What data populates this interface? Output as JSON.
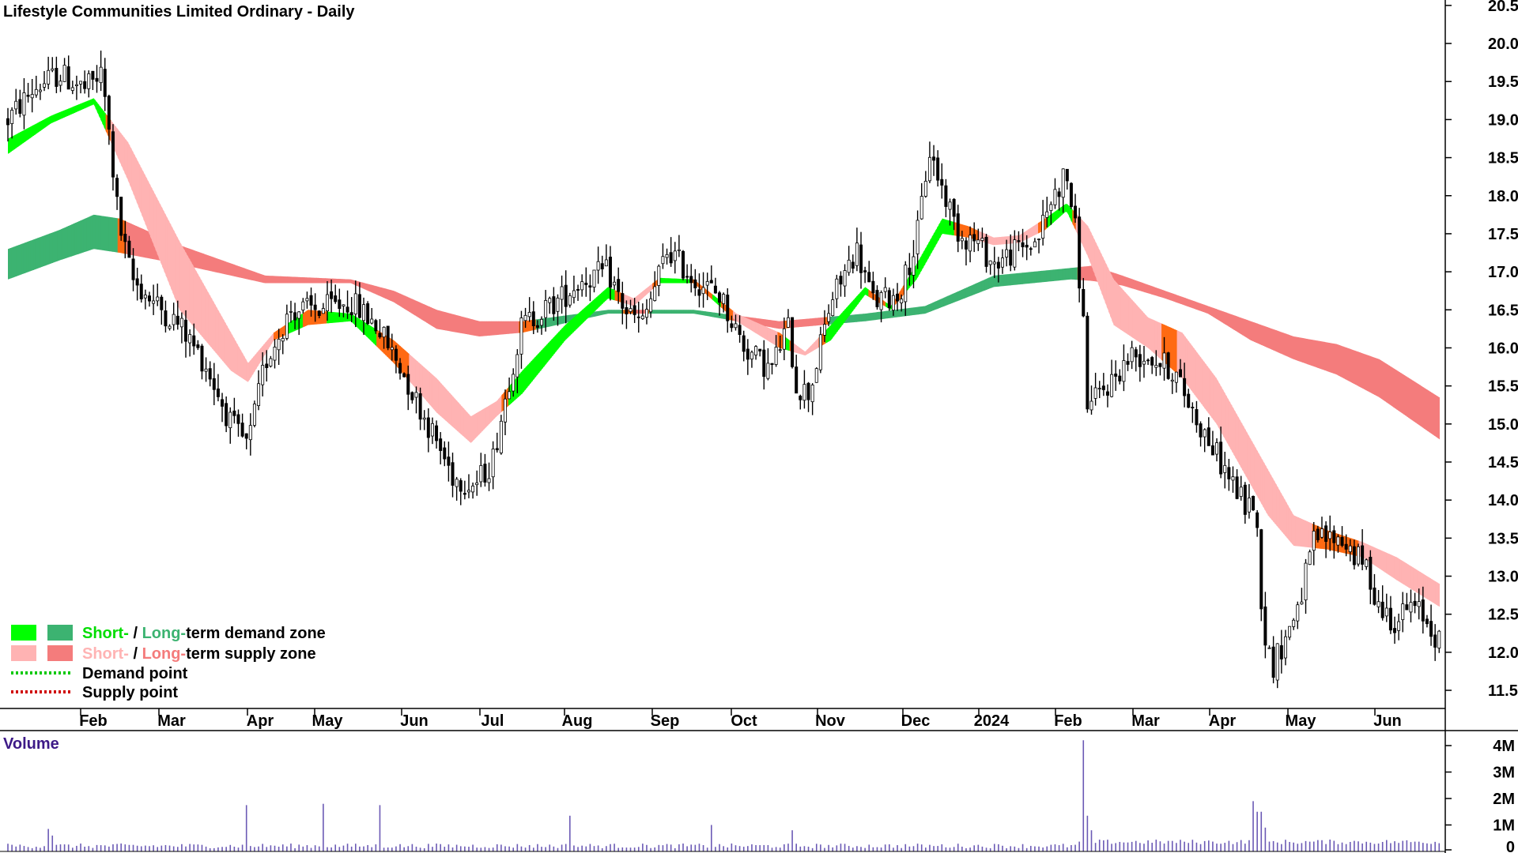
{
  "colors": {
    "short_demand": "#00ff00",
    "long_demand": "#3cb371",
    "short_supply": "#ffb3b3",
    "long_supply": "#f47c7c",
    "transition": "#ff6a13",
    "candle": "#000000",
    "volume_bar": "#6b5ab5",
    "volume_label": "#3d1a87",
    "demand_point": "#00c800",
    "supply_point": "#d00000"
  },
  "legend": {
    "demand_short": "Short-",
    "demand_sep": " / ",
    "demand_long": "Long-",
    "demand_rest": "term demand zone",
    "supply_short": "Short-",
    "supply_sep": " / ",
    "supply_long": "Long-",
    "supply_rest": "term supply zone",
    "demand_point": "Demand point",
    "supply_point": "Supply point"
  },
  "chart_data": {
    "type": "candlestick",
    "title": "Lifestyle Communities Limited Ordinary - Daily",
    "x_tick_labels": [
      "Feb",
      "Mar",
      "Apr",
      "May",
      "Jun",
      "Jul",
      "Aug",
      "Sep",
      "Oct",
      "Nov",
      "Dec",
      "2024",
      "Feb",
      "Mar",
      "Apr",
      "May",
      "Jun"
    ],
    "y_tick_labels": [
      "11.5",
      "12.0",
      "12.5",
      "13.0",
      "13.5",
      "14.0",
      "14.5",
      "15.0",
      "15.5",
      "16.0",
      "16.5",
      "17.0",
      "17.5",
      "18.0",
      "18.5",
      "19.0",
      "19.5",
      "20.0",
      "20.5"
    ],
    "ylim": [
      11.2,
      20.6
    ],
    "grid": false,
    "legend_position": "bottom-left",
    "price_path": [
      {
        "m": 0.0,
        "p": 19.0
      },
      {
        "m": 0.3,
        "p": 19.4
      },
      {
        "m": 0.6,
        "p": 19.6
      },
      {
        "m": 0.9,
        "p": 19.4
      },
      {
        "m": 1.1,
        "p": 19.6
      },
      {
        "m": 1.2,
        "p": 18.6
      },
      {
        "m": 1.3,
        "p": 17.6
      },
      {
        "m": 1.45,
        "p": 16.9
      },
      {
        "m": 1.7,
        "p": 16.6
      },
      {
        "m": 2.0,
        "p": 16.3
      },
      {
        "m": 2.3,
        "p": 15.8
      },
      {
        "m": 2.6,
        "p": 15.0
      },
      {
        "m": 2.8,
        "p": 14.7
      },
      {
        "m": 3.0,
        "p": 15.8
      },
      {
        "m": 3.3,
        "p": 16.5
      },
      {
        "m": 3.6,
        "p": 16.5
      },
      {
        "m": 4.0,
        "p": 16.6
      },
      {
        "m": 4.3,
        "p": 16.3
      },
      {
        "m": 4.6,
        "p": 15.7
      },
      {
        "m": 4.9,
        "p": 15.0
      },
      {
        "m": 5.2,
        "p": 14.3
      },
      {
        "m": 5.45,
        "p": 14.2
      },
      {
        "m": 5.65,
        "p": 14.5
      },
      {
        "m": 5.85,
        "p": 15.6
      },
      {
        "m": 6.0,
        "p": 16.3
      },
      {
        "m": 6.4,
        "p": 16.6
      },
      {
        "m": 6.7,
        "p": 16.9
      },
      {
        "m": 7.0,
        "p": 17.0
      },
      {
        "m": 7.2,
        "p": 16.5
      },
      {
        "m": 7.4,
        "p": 16.3
      },
      {
        "m": 7.7,
        "p": 17.3
      },
      {
        "m": 8.0,
        "p": 16.9
      },
      {
        "m": 8.3,
        "p": 16.7
      },
      {
        "m": 8.6,
        "p": 16.0
      },
      {
        "m": 8.9,
        "p": 15.7
      },
      {
        "m": 9.1,
        "p": 16.3
      },
      {
        "m": 9.2,
        "p": 15.5
      },
      {
        "m": 9.35,
        "p": 15.4
      },
      {
        "m": 9.6,
        "p": 16.6
      },
      {
        "m": 9.9,
        "p": 17.3
      },
      {
        "m": 10.1,
        "p": 16.6
      },
      {
        "m": 10.4,
        "p": 16.7
      },
      {
        "m": 10.6,
        "p": 17.4
      },
      {
        "m": 10.75,
        "p": 18.6
      },
      {
        "m": 10.9,
        "p": 18.1
      },
      {
        "m": 11.1,
        "p": 17.5
      },
      {
        "m": 11.3,
        "p": 17.4
      },
      {
        "m": 11.5,
        "p": 17.1
      },
      {
        "m": 11.8,
        "p": 17.3
      },
      {
        "m": 12.0,
        "p": 17.4
      },
      {
        "m": 12.2,
        "p": 18.0
      },
      {
        "m": 12.35,
        "p": 18.3
      },
      {
        "m": 12.45,
        "p": 17.6
      },
      {
        "m": 12.55,
        "p": 16.3
      },
      {
        "m": 12.6,
        "p": 15.2
      },
      {
        "m": 12.9,
        "p": 15.6
      },
      {
        "m": 13.1,
        "p": 15.9
      },
      {
        "m": 13.3,
        "p": 15.9
      },
      {
        "m": 13.6,
        "p": 15.7
      },
      {
        "m": 13.9,
        "p": 15.0
      },
      {
        "m": 14.2,
        "p": 14.4
      },
      {
        "m": 14.45,
        "p": 13.9
      },
      {
        "m": 14.55,
        "p": 14.0
      },
      {
        "m": 14.65,
        "p": 12.3
      },
      {
        "m": 14.75,
        "p": 11.8
      },
      {
        "m": 14.95,
        "p": 12.3
      },
      {
        "m": 15.1,
        "p": 12.8
      },
      {
        "m": 15.25,
        "p": 13.5
      },
      {
        "m": 15.55,
        "p": 13.5
      },
      {
        "m": 15.85,
        "p": 13.1
      },
      {
        "m": 16.0,
        "p": 12.6
      },
      {
        "m": 16.2,
        "p": 12.4
      },
      {
        "m": 16.35,
        "p": 12.6
      },
      {
        "m": 16.5,
        "p": 12.5
      },
      {
        "m": 16.7,
        "p": 12.15
      }
    ],
    "short_term_zone": [
      {
        "m": 0.0,
        "t": 18.55,
        "b": 18.75
      },
      {
        "m": 0.5,
        "t": 18.95,
        "b": 19.05
      },
      {
        "m": 1.0,
        "t": 19.2,
        "b": 19.28
      },
      {
        "m": 1.4,
        "t": 18.2,
        "b": 18.7
      },
      {
        "m": 2.0,
        "t": 16.5,
        "b": 17.4
      },
      {
        "m": 2.6,
        "t": 15.7,
        "b": 16.2
      },
      {
        "m": 2.8,
        "t": 15.55,
        "b": 15.8
      },
      {
        "m": 3.1,
        "t": 16.1,
        "b": 16.2
      },
      {
        "m": 3.5,
        "t": 16.3,
        "b": 16.5
      },
      {
        "m": 4.0,
        "t": 16.35,
        "b": 16.45
      },
      {
        "m": 4.5,
        "t": 15.8,
        "b": 16.1
      },
      {
        "m": 5.0,
        "t": 15.15,
        "b": 15.6
      },
      {
        "m": 5.4,
        "t": 14.75,
        "b": 15.1
      },
      {
        "m": 5.7,
        "t": 15.1,
        "b": 15.3
      },
      {
        "m": 6.0,
        "t": 15.4,
        "b": 15.7
      },
      {
        "m": 6.5,
        "t": 16.1,
        "b": 16.3
      },
      {
        "m": 7.0,
        "t": 16.65,
        "b": 16.8
      },
      {
        "m": 7.3,
        "t": 16.55,
        "b": 16.65
      },
      {
        "m": 7.6,
        "t": 16.85,
        "b": 16.92
      },
      {
        "m": 8.0,
        "t": 16.85,
        "b": 16.9
      },
      {
        "m": 8.5,
        "t": 16.35,
        "b": 16.45
      },
      {
        "m": 9.0,
        "t": 16.0,
        "b": 16.2
      },
      {
        "m": 9.3,
        "t": 15.9,
        "b": 15.95
      },
      {
        "m": 9.6,
        "t": 16.1,
        "b": 16.3
      },
      {
        "m": 10.0,
        "t": 16.7,
        "b": 16.8
      },
      {
        "m": 10.3,
        "t": 16.5,
        "b": 16.55
      },
      {
        "m": 10.6,
        "t": 16.9,
        "b": 17.1
      },
      {
        "m": 10.9,
        "t": 17.5,
        "b": 17.7
      },
      {
        "m": 11.2,
        "t": 17.45,
        "b": 17.6
      },
      {
        "m": 11.5,
        "t": 17.35,
        "b": 17.45
      },
      {
        "m": 11.8,
        "t": 17.38,
        "b": 17.48
      },
      {
        "m": 12.1,
        "t": 17.55,
        "b": 17.7
      },
      {
        "m": 12.35,
        "t": 17.8,
        "b": 17.9
      },
      {
        "m": 12.6,
        "t": 17.2,
        "b": 17.6
      },
      {
        "m": 12.9,
        "t": 16.3,
        "b": 16.9
      },
      {
        "m": 13.3,
        "t": 16.0,
        "b": 16.4
      },
      {
        "m": 13.7,
        "t": 15.6,
        "b": 16.2
      },
      {
        "m": 14.1,
        "t": 15.0,
        "b": 15.6
      },
      {
        "m": 14.4,
        "t": 14.4,
        "b": 15.0
      },
      {
        "m": 14.7,
        "t": 13.8,
        "b": 14.4
      },
      {
        "m": 15.0,
        "t": 13.4,
        "b": 13.8
      },
      {
        "m": 15.4,
        "t": 13.35,
        "b": 13.6
      },
      {
        "m": 15.8,
        "t": 13.25,
        "b": 13.45
      },
      {
        "m": 16.2,
        "t": 12.95,
        "b": 13.25
      },
      {
        "m": 16.7,
        "t": 12.6,
        "b": 12.9
      }
    ],
    "long_term_zone": [
      {
        "m": 0.0,
        "t": 16.9,
        "b": 17.3
      },
      {
        "m": 0.6,
        "t": 17.15,
        "b": 17.55
      },
      {
        "m": 1.0,
        "t": 17.3,
        "b": 17.75
      },
      {
        "m": 1.3,
        "t": 17.25,
        "b": 17.7
      },
      {
        "m": 2.0,
        "t": 17.1,
        "b": 17.35
      },
      {
        "m": 3.0,
        "t": 16.85,
        "b": 16.95
      },
      {
        "m": 4.0,
        "t": 16.85,
        "b": 16.9
      },
      {
        "m": 4.5,
        "t": 16.6,
        "b": 16.75
      },
      {
        "m": 5.0,
        "t": 16.25,
        "b": 16.5
      },
      {
        "m": 5.5,
        "t": 16.15,
        "b": 16.35
      },
      {
        "m": 6.0,
        "t": 16.2,
        "b": 16.35
      },
      {
        "m": 7.0,
        "t": 16.45,
        "b": 16.5
      },
      {
        "m": 8.0,
        "t": 16.45,
        "b": 16.5
      },
      {
        "m": 9.0,
        "t": 16.25,
        "b": 16.35
      },
      {
        "m": 10.0,
        "t": 16.35,
        "b": 16.45
      },
      {
        "m": 10.7,
        "t": 16.45,
        "b": 16.55
      },
      {
        "m": 11.5,
        "t": 16.8,
        "b": 16.95
      },
      {
        "m": 12.4,
        "t": 16.9,
        "b": 17.05
      },
      {
        "m": 12.65,
        "t": 16.88,
        "b": 17.08
      },
      {
        "m": 13.0,
        "t": 16.82,
        "b": 16.95
      },
      {
        "m": 13.5,
        "t": 16.65,
        "b": 16.75
      },
      {
        "m": 14.0,
        "t": 16.45,
        "b": 16.55
      },
      {
        "m": 14.5,
        "t": 16.1,
        "b": 16.35
      },
      {
        "m": 15.0,
        "t": 15.85,
        "b": 16.15
      },
      {
        "m": 15.5,
        "t": 15.65,
        "b": 16.05
      },
      {
        "m": 16.0,
        "t": 15.35,
        "b": 15.85
      },
      {
        "m": 16.7,
        "t": 14.8,
        "b": 15.35
      }
    ]
  },
  "volume": {
    "label": "Volume",
    "y_tick_labels": [
      "4M",
      "3M",
      "2M",
      "1M",
      "0"
    ],
    "ylim": [
      0,
      4.5
    ],
    "spikes": [
      {
        "m": 0.45,
        "v": 0.85
      },
      {
        "m": 0.5,
        "v": 0.6
      },
      {
        "m": 2.8,
        "v": 1.75
      },
      {
        "m": 3.7,
        "v": 1.8
      },
      {
        "m": 4.35,
        "v": 1.75
      },
      {
        "m": 6.55,
        "v": 1.35
      },
      {
        "m": 8.2,
        "v": 1.0
      },
      {
        "m": 9.15,
        "v": 0.8
      },
      {
        "m": 12.55,
        "v": 4.2
      },
      {
        "m": 12.6,
        "v": 1.35
      },
      {
        "m": 12.65,
        "v": 0.8
      },
      {
        "m": 14.55,
        "v": 1.9
      },
      {
        "m": 14.6,
        "v": 1.5
      },
      {
        "m": 14.65,
        "v": 0.9
      }
    ]
  }
}
